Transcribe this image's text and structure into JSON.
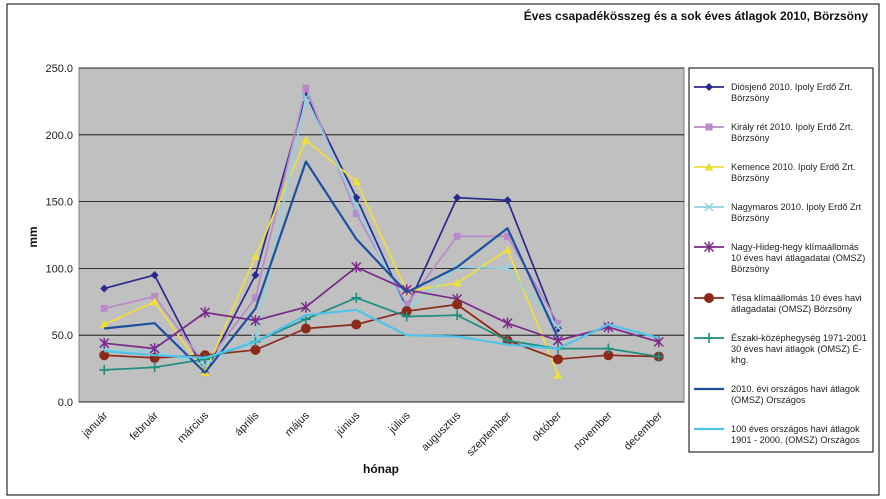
{
  "chart_data": {
    "type": "line",
    "title": "Éves csapadékösszeg és a sok éves átlagok 2010, Börzsöny",
    "xlabel": "hónap",
    "ylabel": "mm",
    "ylim": [
      0,
      250
    ],
    "y_ticks": [
      "0.0",
      "50.0",
      "100.0",
      "150.0",
      "200.0",
      "250.0"
    ],
    "grid": "horizontal",
    "legend_position": "right",
    "categories": [
      "január",
      "február",
      "március",
      "április",
      "május",
      "június",
      "július",
      "augusztus",
      "szeptember",
      "október",
      "november",
      "december"
    ],
    "series": [
      {
        "name": "Diósjenő 2010. Ipoly Erdő Zrt. Börzsöny",
        "legend_lines": [
          "Diósjenő 2010. Ipoly Erdő Zrt.",
          "Börzsöny"
        ],
        "color": "#2a2a8c",
        "marker": "diamond",
        "values": [
          85,
          95,
          22,
          95,
          230,
          153,
          70,
          153,
          151,
          55,
          null,
          null
        ]
      },
      {
        "name": "Király rét 2010. Ipoly Erdő Zrt. Börzsöny",
        "legend_lines": [
          "Király rét 2010. Ipoly Erdő Zrt.",
          "Börzsöny"
        ],
        "color": "#b98ac8",
        "marker": "square",
        "values": [
          70,
          79,
          28,
          78,
          235,
          141,
          73,
          124,
          124,
          59,
          null,
          null
        ]
      },
      {
        "name": "Kemence 2010. Ipoly Erdő Zrt. Börzsöny",
        "legend_lines": [
          "Kemence 2010. Ipoly Erdő Zrt.",
          "Börzsöny"
        ],
        "color": "#eedf3c",
        "marker": "triangle",
        "values": [
          58,
          75,
          22,
          109,
          196,
          165,
          83,
          89,
          114,
          20,
          null,
          null
        ]
      },
      {
        "name": "Nagymaros 2010. Ipoly Erdő Zrt. Börzsöny",
        "legend_lines": [
          "Nagymaros 2010. Ipoly Erdő Zrt",
          "Börzsöny"
        ],
        "color": "#8fd3e0",
        "marker": "x",
        "values": [
          39,
          38,
          28,
          48,
          228,
          147,
          68,
          101,
          100,
          56,
          null,
          null
        ]
      },
      {
        "name": "Nagy-Hideg-hegy klímaállomás 10 éves havi átlagadatai (OMSZ) Börzsöny",
        "legend_lines": [
          "Nagy-Hideg-hegy klímaállomás",
          "10 éves havi átlagadatai (OMSZ)",
          "Börzsöny"
        ],
        "color": "#7a2a8a",
        "marker": "star",
        "values": [
          44,
          40,
          67,
          61,
          71,
          101,
          84,
          77,
          59,
          46,
          56,
          45
        ]
      },
      {
        "name": "Tésa klímaállomás 10 éves havi átlagadatai (OMSZ) Börzsöny",
        "legend_lines": [
          "Tésa klímaállomás 10 éves havi",
          "átlagadatai (OMSZ) Börzsöny"
        ],
        "color": "#8b2a1a",
        "marker": "circle",
        "values": [
          35,
          33,
          35,
          39,
          55,
          58,
          68,
          73,
          46,
          32,
          35,
          34
        ]
      },
      {
        "name": "Északi-középhegység 1971-2001 30 éves havi átlagok (OMSZ) É-khg.",
        "legend_lines": [
          "Északi-középhegység 1971-2001",
          "30 éves havi átlagok (OMSZ) É-",
          "khg."
        ],
        "color": "#1e8c7e",
        "marker": "plus",
        "values": [
          24,
          26,
          32,
          45,
          62,
          78,
          64,
          65,
          46,
          40,
          40,
          34
        ]
      },
      {
        "name": "2010. évi országos havi átlagok (OMSZ) Országos",
        "legend_lines": [
          "2010. évi országos havi átlagok",
          "(OMSZ) Országos"
        ],
        "color": "#1f4fa0",
        "marker": "none",
        "values": [
          55,
          59,
          22,
          70,
          180,
          122,
          82,
          101,
          130,
          48,
          null,
          null
        ]
      },
      {
        "name": "100 éves országos havi átlagok 1901 - 2000. (OMSZ) Országos",
        "legend_lines": [
          "100 éves országos havi átlagok",
          "1901 - 2000. (OMSZ) Országos"
        ],
        "color": "#4fc3e8",
        "marker": "none",
        "values": [
          38,
          35,
          33,
          45,
          65,
          69,
          50,
          49,
          43,
          40,
          58,
          48
        ]
      }
    ]
  }
}
